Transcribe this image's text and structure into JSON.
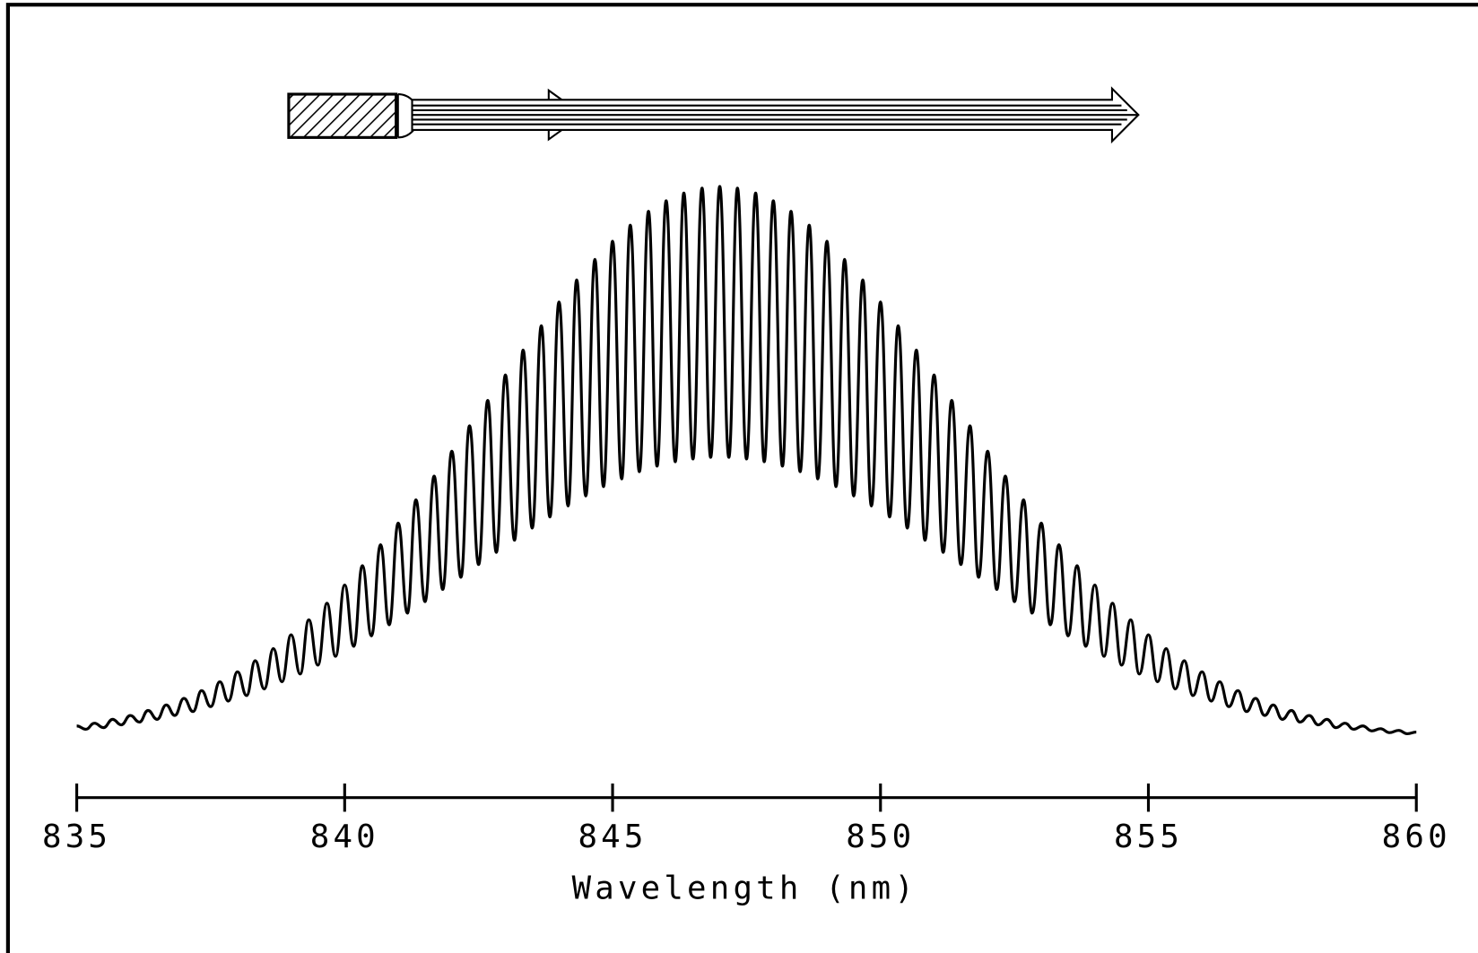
{
  "chart_data": {
    "type": "line",
    "x_label": "Wavelength (nm)",
    "color": "#000000",
    "xlim": [
      835,
      860
    ],
    "xticks": [
      835,
      840,
      845,
      850,
      855,
      860
    ],
    "ylim": [
      0,
      100
    ],
    "x": [
      835,
      835.17,
      835.33,
      835.5,
      835.67,
      835.83,
      836,
      836.17,
      836.33,
      836.5,
      836.67,
      836.83,
      837,
      837.17,
      837.33,
      837.5,
      837.67,
      837.83,
      838,
      838.17,
      838.33,
      838.5,
      838.67,
      838.83,
      839,
      839.17,
      839.33,
      839.5,
      839.67,
      839.83,
      840,
      840.17,
      840.33,
      840.5,
      840.67,
      840.83,
      841,
      841.17,
      841.33,
      841.5,
      841.67,
      841.83,
      842,
      842.17,
      842.33,
      842.5,
      842.67,
      842.83,
      843,
      843.17,
      843.33,
      843.5,
      843.67,
      843.83,
      844,
      844.17,
      844.33,
      844.5,
      844.67,
      844.83,
      845,
      845.17,
      845.33,
      845.5,
      845.67,
      845.83,
      846,
      846.17,
      846.33,
      846.5,
      846.67,
      846.83,
      847,
      847.17,
      847.33,
      847.5,
      847.67,
      847.83,
      848,
      848.17,
      848.33,
      848.5,
      848.67,
      848.83,
      849,
      849.17,
      849.33,
      849.5,
      849.67,
      849.83,
      850,
      850.17,
      850.33,
      850.5,
      850.67,
      850.83,
      851,
      851.17,
      851.33,
      851.5,
      851.67,
      851.83,
      852,
      852.17,
      852.33,
      852.5,
      852.67,
      852.83,
      853,
      853.17,
      853.33,
      853.5,
      853.67,
      853.83,
      854,
      854.17,
      854.33,
      854.5,
      854.67,
      854.83,
      855,
      855.17,
      855.33,
      855.5,
      855.67,
      855.83,
      856,
      856.17,
      856.33,
      856.5,
      856.67,
      856.83,
      857,
      857.17,
      857.33,
      857.5,
      857.67,
      857.83,
      858,
      858.17,
      858.33,
      858.5,
      858.67,
      858.83,
      859,
      859.17,
      859.33,
      859.5,
      859.67,
      859.83,
      860
    ],
    "values": [
      2.4,
      1.8,
      2.9,
      2.1,
      3.6,
      2.6,
      4.3,
      3.1,
      5.2,
      3.6,
      6.2,
      4.3,
      7.4,
      5.0,
      8.8,
      5.9,
      10.4,
      6.9,
      12.2,
      7.9,
      14.2,
      9.1,
      16.4,
      10.4,
      18.9,
      11.8,
      21.6,
      13.4,
      24.6,
      15.0,
      27.9,
      16.8,
      31.4,
      18.7,
      35.2,
      20.7,
      39.1,
      22.8,
      43.3,
      24.9,
      47.6,
      27.1,
      52.1,
      29.3,
      56.7,
      31.6,
      61.3,
      33.8,
      65.9,
      36.0,
      70.4,
      38.2,
      74.8,
      40.2,
      79.1,
      42.2,
      83.1,
      44.0,
      86.8,
      45.7,
      90.1,
      47.1,
      93.0,
      48.4,
      95.5,
      49.4,
      97.4,
      50.2,
      98.8,
      50.7,
      99.7,
      51.0,
      100.0,
      51.0,
      99.7,
      50.7,
      98.8,
      50.2,
      97.4,
      49.4,
      95.5,
      48.4,
      93.0,
      47.1,
      90.1,
      45.7,
      86.8,
      44.0,
      83.1,
      42.2,
      79.1,
      40.2,
      74.8,
      38.2,
      70.4,
      36.0,
      65.9,
      33.8,
      61.3,
      31.6,
      56.7,
      29.3,
      52.1,
      27.1,
      47.6,
      24.9,
      43.3,
      22.8,
      39.1,
      20.7,
      35.2,
      18.7,
      31.4,
      16.8,
      27.9,
      15.0,
      24.6,
      13.4,
      21.6,
      11.8,
      18.9,
      10.4,
      16.4,
      9.1,
      14.2,
      7.9,
      12.2,
      6.9,
      10.4,
      5.9,
      8.8,
      5.0,
      7.4,
      4.3,
      6.2,
      3.6,
      5.2,
      3.1,
      4.3,
      2.6,
      3.6,
      2.1,
      2.9,
      1.8,
      2.4,
      1.5,
      1.9,
      1.2,
      1.6,
      1.0,
      1.3
    ]
  }
}
